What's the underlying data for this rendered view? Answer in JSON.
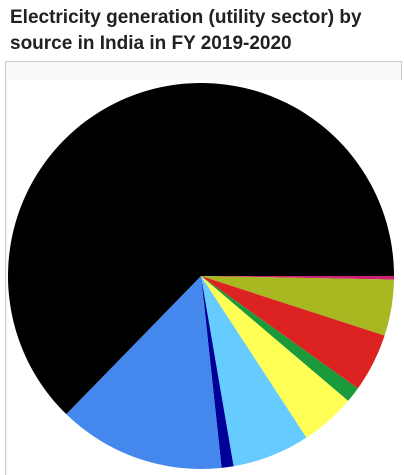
{
  "header": {
    "title_line1": "Electricity generation (utility sector) by",
    "title_line2": "source in India in FY 2019-2020"
  },
  "chart_data": {
    "type": "pie",
    "title": "Electricity generation (utility sector) by source in India in FY 2019-2020",
    "start_angle_deg": 0,
    "direction": "clockwise",
    "legend": "none",
    "slices": [
      {
        "value": 0.3,
        "color": "#cc2277"
      },
      {
        "value": 4.7,
        "color": "#a8b820"
      },
      {
        "value": 4.9,
        "color": "#dd2222"
      },
      {
        "value": 1.3,
        "color": "#1a9a3a"
      },
      {
        "value": 4.6,
        "color": "#ffff55"
      },
      {
        "value": 6.5,
        "color": "#66ccff"
      },
      {
        "value": 1.0,
        "color": "#000099"
      },
      {
        "value": 14.0,
        "color": "#4488ee"
      },
      {
        "value": 62.7,
        "color": "#000000"
      }
    ]
  }
}
